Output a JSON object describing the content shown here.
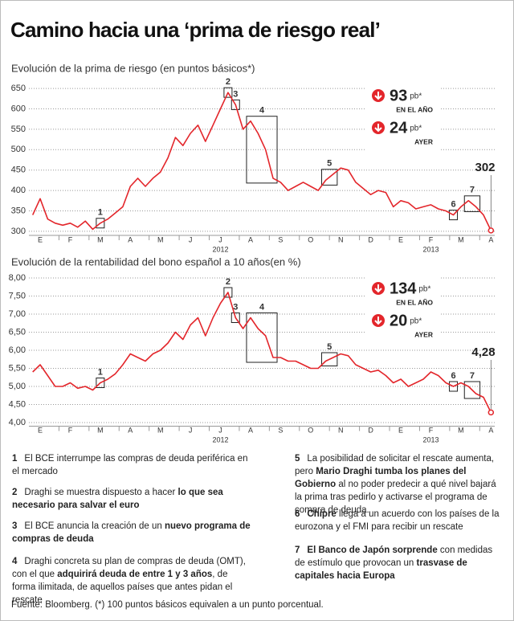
{
  "header": {
    "title": "Camino hacia una ‘prima de riesgo real’"
  },
  "chart_data": [
    {
      "type": "line",
      "title": "Evolución de la prima de riesgo (en puntos básicos*)",
      "categories": [
        null,
        "E",
        null,
        null,
        null,
        "F",
        null,
        null,
        null,
        "M",
        null,
        null,
        null,
        "A",
        null,
        null,
        null,
        "M",
        null,
        null,
        null,
        "J",
        null,
        null,
        null,
        "J",
        null,
        null,
        null,
        "A",
        null,
        null,
        null,
        "S",
        null,
        null,
        null,
        "O",
        null,
        null,
        null,
        "N",
        null,
        null,
        null,
        "D",
        null,
        null,
        null,
        "E",
        null,
        null,
        null,
        "F",
        null,
        null,
        null,
        "M",
        null,
        null,
        null,
        "A"
      ],
      "years": [
        "2012",
        "2013"
      ],
      "color": "#e3262b",
      "values": [
        340,
        380,
        330,
        320,
        315,
        320,
        310,
        325,
        305,
        320,
        330,
        345,
        360,
        410,
        430,
        410,
        430,
        445,
        480,
        530,
        510,
        540,
        560,
        520,
        560,
        600,
        640,
        610,
        550,
        570,
        540,
        500,
        430,
        420,
        400,
        410,
        420,
        410,
        400,
        425,
        440,
        455,
        450,
        420,
        405,
        390,
        400,
        395,
        360,
        375,
        370,
        355,
        360,
        365,
        355,
        350,
        340,
        360,
        375,
        360,
        340,
        302
      ],
      "ylim": [
        290,
        660
      ],
      "yticks": [
        300,
        350,
        400,
        450,
        500,
        550,
        600,
        650
      ],
      "grid": true,
      "events": [
        "1",
        "2",
        "3",
        "4",
        "5",
        "6",
        "7"
      ],
      "stats": [
        {
          "value": 93,
          "unit": "pb*",
          "label": "EN EL AÑO"
        },
        {
          "value": 24,
          "unit": "pb*",
          "label": "AYER"
        }
      ]
    },
    {
      "type": "line",
      "title": "Evolución de la rentabilidad del bono español a 10 años(en %)",
      "categories": [
        null,
        "E",
        null,
        null,
        null,
        "F",
        null,
        null,
        null,
        "M",
        null,
        null,
        null,
        "A",
        null,
        null,
        null,
        "M",
        null,
        null,
        null,
        "J",
        null,
        null,
        null,
        "J",
        null,
        null,
        null,
        "A",
        null,
        null,
        null,
        "S",
        null,
        null,
        null,
        "O",
        null,
        null,
        null,
        "N",
        null,
        null,
        null,
        "D",
        null,
        null,
        null,
        "E",
        null,
        null,
        null,
        "F",
        null,
        null,
        null,
        "M",
        null,
        null,
        null,
        "A"
      ],
      "years": [
        "2012",
        "2013"
      ],
      "color": "#e3262b",
      "values": [
        5.4,
        5.6,
        5.3,
        5.0,
        5.0,
        5.1,
        4.95,
        5.0,
        4.9,
        5.1,
        5.2,
        5.35,
        5.6,
        5.9,
        5.8,
        5.7,
        5.9,
        6.0,
        6.2,
        6.5,
        6.3,
        6.7,
        6.9,
        6.4,
        6.9,
        7.3,
        7.6,
        6.9,
        6.6,
        6.9,
        6.6,
        6.4,
        5.8,
        5.8,
        5.7,
        5.7,
        5.6,
        5.5,
        5.5,
        5.7,
        5.8,
        5.9,
        5.85,
        5.6,
        5.5,
        5.4,
        5.45,
        5.3,
        5.1,
        5.2,
        5.0,
        5.1,
        5.2,
        5.4,
        5.3,
        5.1,
        5.0,
        5.1,
        5.0,
        4.8,
        4.7,
        4.28
      ],
      "value_labels": [
        null,
        null,
        null,
        null,
        null,
        null,
        null,
        null,
        null,
        null,
        null,
        null,
        null,
        null,
        null,
        null,
        null,
        null,
        null,
        null,
        null,
        null,
        null,
        null,
        null,
        null,
        null,
        null,
        null,
        null,
        null,
        null,
        null,
        null,
        null,
        null,
        null,
        null,
        null,
        null,
        null,
        null,
        null,
        null,
        null,
        null,
        null,
        null,
        null,
        null,
        null,
        null,
        null,
        null,
        null,
        null,
        null,
        null,
        null,
        null,
        null,
        "4,28"
      ],
      "ylim": [
        3.9,
        8.1
      ],
      "yticks": [
        {
          "value": 4,
          "label": "4,00"
        },
        {
          "value": 4.5,
          "label": "4,50"
        },
        {
          "value": 5,
          "label": "5,00"
        },
        {
          "value": 5.5,
          "label": "5,50"
        },
        {
          "value": 6,
          "label": "6,00"
        },
        {
          "value": 6.5,
          "label": "6,50"
        },
        {
          "value": 7,
          "label": "7,00"
        },
        {
          "value": 7.5,
          "label": "7,50"
        },
        {
          "value": 8,
          "label": "8,00"
        }
      ],
      "grid": true,
      "events": [
        "1",
        "2",
        "3",
        "4",
        "5",
        "6",
        "7"
      ],
      "stats": [
        {
          "value": 134,
          "unit": "pb*",
          "label": "EN EL AÑO"
        },
        {
          "value": 20,
          "unit": "pb*",
          "label": "AYER"
        }
      ]
    }
  ],
  "notes": [
    {
      "num": "1",
      "parts": [
        {
          "text": "El BCE interrumpe las compras de deuda periférica en el mercado",
          "bold": false
        }
      ]
    },
    {
      "num": "2",
      "parts": [
        {
          "text": "Draghi se muestra dispuesto a hacer ",
          "bold": false
        },
        {
          "text": "lo que sea necesario para salvar el euro",
          "bold": true
        }
      ]
    },
    {
      "num": "3",
      "parts": [
        {
          "text": "El BCE anuncia la creación de un ",
          "bold": false
        },
        {
          "text": "nuevo programa de compras de deuda",
          "bold": true
        }
      ]
    },
    {
      "num": "4",
      "parts": [
        {
          "text": "Draghi concreta su plan de compras de deuda (OMT), con el que ",
          "bold": false
        },
        {
          "text": "adquirirá deuda de entre 1 y 3 años",
          "bold": true
        },
        {
          "text": ", de forma ilimitada, de aquellos países que antes pidan el rescate",
          "bold": false
        }
      ]
    },
    {
      "num": "5",
      "parts": [
        {
          "text": "La posibilidad de solicitar el rescate aumenta, pero ",
          "bold": false
        },
        {
          "text": "Mario Draghi tumba los planes del Gobierno",
          "bold": true
        },
        {
          "text": " al no poder predecir a qué nivel bajará la prima tras pedirlo y activarse el programa de compra de deuda.",
          "bold": false
        }
      ]
    },
    {
      "num": "6",
      "parts": [
        {
          "text": "Chipre",
          "bold": true
        },
        {
          "text": " llega a un acuerdo con los países de la eurozona y el FMI para recibir un rescate",
          "bold": false
        }
      ]
    },
    {
      "num": "7",
      "parts": [
        {
          "text": "El Banco de Japón sorprende",
          "bold": true
        },
        {
          "text": " con medidas de estímulo que provocan un ",
          "bold": false
        },
        {
          "text": "trasvase de capitales hacia Europa",
          "bold": true
        }
      ]
    }
  ],
  "source": "Fuente: Bloomberg. (*) 100 puntos básicos equivalen a un punto porcentual."
}
